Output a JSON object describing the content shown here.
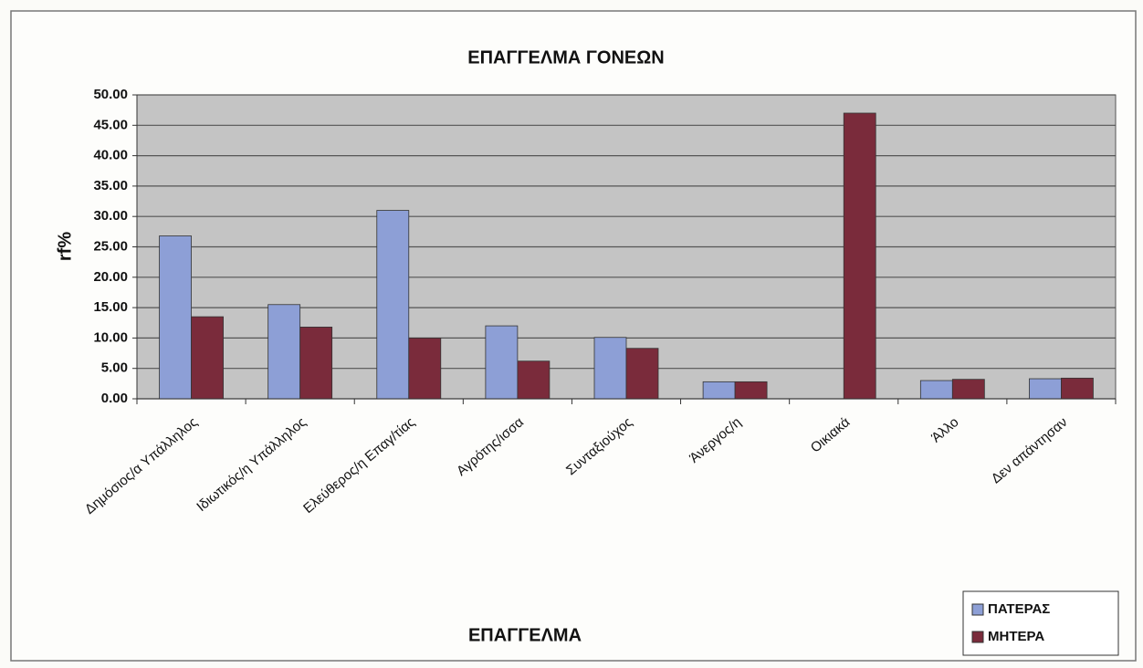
{
  "chart_data": {
    "type": "bar",
    "title": "ΕΠΑΓΓΕΛΜΑ ΓΟΝΕΩΝ",
    "y_label": "rf%",
    "x_label": "ΕΠΑΓΓΕΛΜΑ",
    "categories": [
      "Δημόσιος/α Υπάλληλος",
      "Ιδιωτικός/η Υπάλληλος",
      "Ελεύθερος/η Επαγ/τίας",
      "Αγρότης/ισσα",
      "Συνταξιούχος",
      "Άνεργος/η",
      "Οικιακά",
      "Άλλο",
      "Δεν απάντησαν"
    ],
    "series": [
      {
        "name": "ΠΑΤΕΡΑΣ",
        "color": "#8d9fd6",
        "values": [
          26.8,
          15.5,
          31.0,
          12.0,
          10.1,
          2.8,
          0,
          3.0,
          3.3
        ]
      },
      {
        "name": "ΜΗΤΕΡΑ",
        "color": "#7a2b3b",
        "values": [
          13.5,
          11.8,
          10.0,
          6.2,
          8.3,
          2.8,
          47.0,
          3.2,
          3.4
        ]
      }
    ],
    "ylim": [
      0,
      50
    ],
    "yticks": [
      {
        "value": 0,
        "label": "0.00"
      },
      {
        "value": 5,
        "label": "5.00"
      },
      {
        "value": 10,
        "label": "10.00"
      },
      {
        "value": 15,
        "label": "15.00"
      },
      {
        "value": 20,
        "label": "20.00"
      },
      {
        "value": 25,
        "label": "25.00"
      },
      {
        "value": 30,
        "label": "30.00"
      },
      {
        "value": 35,
        "label": "35.00"
      },
      {
        "value": 40,
        "label": "40.00"
      },
      {
        "value": 45,
        "label": "45.00"
      },
      {
        "value": 50,
        "label": "50.00"
      }
    ],
    "grid": true,
    "legend": "bottom-right"
  }
}
